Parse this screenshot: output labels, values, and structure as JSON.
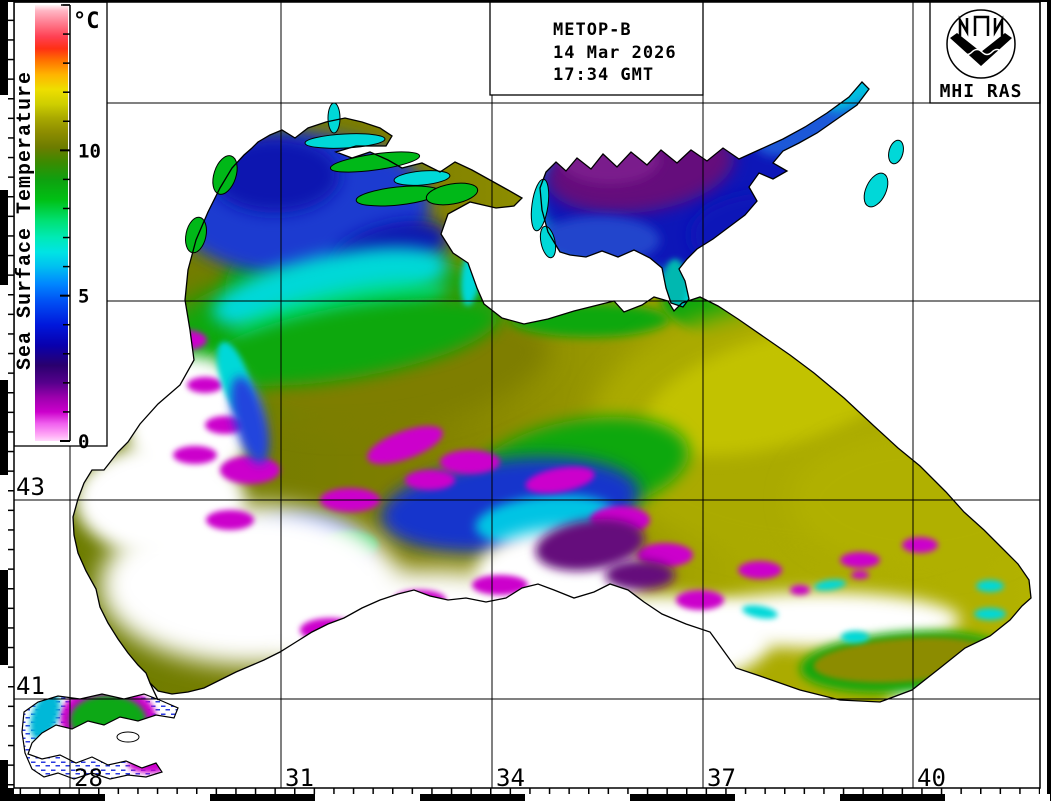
{
  "header": {
    "satellite": "METOP-B",
    "date": "14 Mar 2026",
    "time": "17:34 GMT"
  },
  "logo": {
    "caption": "MHI RAS"
  },
  "colorbar": {
    "title": "Sea Surface Temperature",
    "unit": "°C",
    "min": 0,
    "max": 15,
    "minor_tick_step": 1,
    "major_ticks": [
      0,
      5,
      10
    ],
    "gradient": [
      {
        "t": 0.0,
        "c": "#ffd9fb"
      },
      {
        "t": 0.2,
        "c": "#ffaaf6"
      },
      {
        "t": 0.6,
        "c": "#f060ee"
      },
      {
        "t": 1.0,
        "c": "#cc00cc"
      },
      {
        "t": 1.5,
        "c": "#9c00ad"
      },
      {
        "t": 2.0,
        "c": "#56008c"
      },
      {
        "t": 2.6,
        "c": "#2a006e"
      },
      {
        "t": 3.3,
        "c": "#0800ae"
      },
      {
        "t": 4.0,
        "c": "#0018dc"
      },
      {
        "t": 4.8,
        "c": "#0050f4"
      },
      {
        "t": 5.4,
        "c": "#0086ff"
      },
      {
        "t": 6.0,
        "c": "#00c0f0"
      },
      {
        "t": 6.5,
        "c": "#00e4e4"
      },
      {
        "t": 7.0,
        "c": "#00eab6"
      },
      {
        "t": 7.6,
        "c": "#00e070"
      },
      {
        "t": 8.3,
        "c": "#00c014"
      },
      {
        "t": 9.0,
        "c": "#0fa00f"
      },
      {
        "t": 9.6,
        "c": "#3c8a00"
      },
      {
        "t": 10.1,
        "c": "#6c7c00"
      },
      {
        "t": 10.6,
        "c": "#8c8c00"
      },
      {
        "t": 11.1,
        "c": "#a8a800"
      },
      {
        "t": 11.6,
        "c": "#cfcf00"
      },
      {
        "t": 12.1,
        "c": "#eede00"
      },
      {
        "t": 12.6,
        "c": "#ffb400"
      },
      {
        "t": 13.1,
        "c": "#ff7000"
      },
      {
        "t": 13.5,
        "c": "#ff3014"
      },
      {
        "t": 13.9,
        "c": "#ff4052"
      },
      {
        "t": 14.4,
        "c": "#ff7f92"
      },
      {
        "t": 14.8,
        "c": "#ffb6c4"
      },
      {
        "t": 15.0,
        "c": "#fff4f6"
      }
    ]
  },
  "map": {
    "lon_labels": [
      "28",
      "31",
      "34",
      "37",
      "40"
    ],
    "lat_labels": [
      "43",
      "41"
    ]
  },
  "palette": {
    "land": "#ffffff",
    "frame": "#000000",
    "olive": "#7e7e00",
    "olive_dark": "#6c7c00",
    "yellow": "#aaaa00",
    "yellow_bright": "#c2c200",
    "green": "#0ca80c",
    "spring": "#00dc82",
    "cyan": "#00d8d8",
    "blue": "#1b3bd0",
    "blue_dark": "#0715b0",
    "azov_blue": "#0a12b8",
    "purple": "#65117c",
    "magenta": "#cc00cc",
    "cloud": "#ffffff"
  }
}
